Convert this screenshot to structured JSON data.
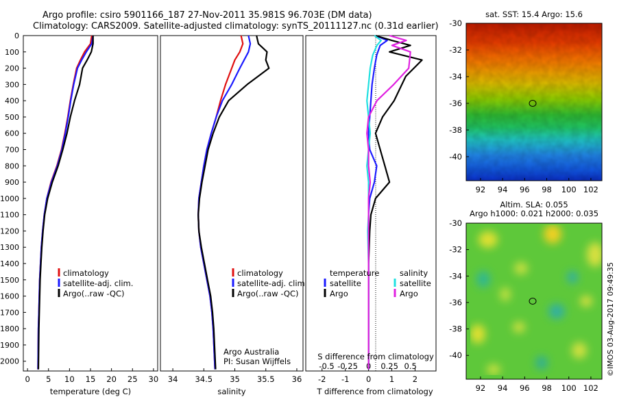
{
  "header": {
    "line1": "Argo profile: csiro 5901166_187 27-Nov-2011 35.981S 96.703E (DM data)",
    "line2": "Climatology: CARS2009. Satellite-adjusted climatology: synTS_20111127.nc (0.31d earlier)"
  },
  "colors": {
    "clim": "#e01010",
    "sat": "#1a1aff",
    "argo": "#000000",
    "sat_s": "#20e0e0",
    "argo_s": "#e020e0"
  },
  "depth_ticks": [
    "0",
    "100",
    "200",
    "300",
    "400",
    "500",
    "600",
    "700",
    "800",
    "900",
    "1000",
    "1100",
    "1200",
    "1300",
    "1400",
    "1500",
    "1600",
    "1700",
    "1800",
    "1900",
    "2000"
  ],
  "panels": {
    "temperature": {
      "xlabel": "temperature (deg C)",
      "xticks": [
        "0",
        "5",
        "10",
        "15",
        "20",
        "25",
        "30"
      ],
      "legend": [
        "climatology",
        "satellite-adj. clim.",
        "Argo(..raw -QC)"
      ]
    },
    "salinity": {
      "xlabel": "salinity",
      "xticks": [
        "34",
        "34.5",
        "35",
        "35.5",
        "36"
      ],
      "legend": [
        "climatology",
        "satellite-adj. clim.",
        "Argo(..raw -QC)"
      ],
      "credit1": "Argo Australia",
      "credit2": "PI: Susan Wijffels"
    },
    "difference": {
      "xlabel": "T difference from climatology",
      "top_label": "S difference from climatology",
      "xticks_T": [
        "-2",
        "-1",
        "0",
        "1",
        "2"
      ],
      "xticks_S": [
        "-0.5",
        "-0.25",
        "0",
        "0.25",
        "0.5"
      ],
      "legend_temp_title": "temperature",
      "legend_sal_title": "salinity",
      "legend_temp": [
        "satellite",
        "Argo"
      ],
      "legend_sal": [
        "satellite",
        "Argo"
      ]
    },
    "sst_map": {
      "title": "sat. SST: 15.4  Argo: 15.6",
      "yticks": [
        "-30",
        "-32",
        "-34",
        "-36",
        "-38",
        "-40"
      ],
      "xticks": [
        "92",
        "94",
        "96",
        "98",
        "100",
        "102"
      ]
    },
    "sla_map": {
      "title1": "Altim. SLA: 0.055",
      "title2": "Argo h1000: 0.021 h2000: 0.035",
      "yticks": [
        "-30",
        "-32",
        "-34",
        "-36",
        "-38",
        "-40"
      ],
      "xticks": [
        "92",
        "94",
        "96",
        "98",
        "100",
        "102"
      ]
    }
  },
  "watermark": "©IMOS 03-Aug-2017 09:49:35",
  "chart_data": [
    {
      "type": "line",
      "title": "",
      "xlabel": "temperature (deg C)",
      "ylabel": "",
      "xlim": [
        -1,
        31
      ],
      "ylim": [
        2060,
        0
      ],
      "series": [
        {
          "name": "climatology",
          "x": [
            15.3,
            15.0,
            13.6,
            12.6,
            11.7,
            10.9,
            10.2,
            9.6,
            8.9,
            8.1,
            7.0,
            5.6,
            4.6,
            4.0,
            3.6,
            3.3,
            3.1,
            2.9,
            2.8,
            2.7,
            2.6,
            2.5
          ],
          "y": [
            0,
            50,
            100,
            150,
            200,
            300,
            400,
            500,
            600,
            700,
            800,
            900,
            1000,
            1100,
            1200,
            1300,
            1400,
            1500,
            1600,
            1700,
            1800,
            2050
          ]
        },
        {
          "name": "satellite-adj. clim.",
          "x": [
            15.6,
            15.3,
            14.0,
            12.9,
            11.9,
            11.0,
            10.3,
            9.7,
            9.0,
            8.2,
            7.1,
            5.7,
            4.6,
            4.0,
            3.6,
            3.3,
            3.1,
            2.9,
            2.8,
            2.7,
            2.6,
            2.5
          ],
          "y": [
            0,
            50,
            100,
            150,
            200,
            300,
            400,
            500,
            600,
            700,
            800,
            900,
            1000,
            1100,
            1200,
            1300,
            1400,
            1500,
            1600,
            1700,
            1800,
            2050
          ]
        },
        {
          "name": "Argo(..raw -QC)",
          "x": [
            15.6,
            15.6,
            15.2,
            14.2,
            13.1,
            12.4,
            11.2,
            10.2,
            9.4,
            8.4,
            7.3,
            5.9,
            4.8,
            4.1,
            3.7,
            3.4,
            3.2,
            3.0,
            2.9,
            2.8,
            2.7,
            2.6
          ],
          "y": [
            0,
            50,
            100,
            150,
            200,
            300,
            400,
            500,
            600,
            700,
            800,
            900,
            1000,
            1100,
            1200,
            1300,
            1400,
            1500,
            1600,
            1700,
            1800,
            2050
          ]
        }
      ]
    },
    {
      "type": "line",
      "title": "",
      "xlabel": "salinity",
      "ylabel": "",
      "xlim": [
        33.8,
        36.1
      ],
      "ylim": [
        2060,
        0
      ],
      "series": [
        {
          "name": "climatology",
          "x": [
            35.1,
            35.13,
            35.08,
            35.0,
            34.95,
            34.85,
            34.77,
            34.7,
            34.62,
            34.55,
            34.5,
            34.46,
            34.42,
            34.41,
            34.42,
            34.45,
            34.5,
            34.55,
            34.6,
            34.63,
            34.65,
            34.68
          ],
          "y": [
            0,
            50,
            100,
            150,
            200,
            300,
            400,
            500,
            600,
            700,
            800,
            900,
            1000,
            1100,
            1200,
            1300,
            1400,
            1500,
            1600,
            1700,
            1800,
            2050
          ]
        },
        {
          "name": "satellite-adj. clim.",
          "x": [
            35.22,
            35.25,
            35.22,
            35.15,
            35.08,
            34.95,
            34.8,
            34.7,
            34.62,
            34.55,
            34.5,
            34.46,
            34.42,
            34.41,
            34.42,
            34.45,
            34.5,
            34.55,
            34.6,
            34.63,
            34.65,
            34.68
          ],
          "y": [
            0,
            50,
            100,
            150,
            200,
            300,
            400,
            500,
            600,
            700,
            800,
            900,
            1000,
            1100,
            1200,
            1300,
            1400,
            1500,
            1600,
            1700,
            1800,
            2050
          ]
        },
        {
          "name": "Argo(..raw -QC)",
          "x": [
            35.35,
            35.38,
            35.52,
            35.5,
            35.55,
            35.2,
            34.9,
            34.75,
            34.65,
            34.57,
            34.52,
            34.47,
            34.43,
            34.41,
            34.42,
            34.46,
            34.51,
            34.56,
            34.61,
            34.64,
            34.66,
            34.69
          ],
          "y": [
            0,
            50,
            100,
            150,
            200,
            300,
            400,
            500,
            600,
            700,
            800,
            900,
            1000,
            1100,
            1200,
            1300,
            1400,
            1500,
            1600,
            1700,
            1800,
            2050
          ]
        }
      ]
    },
    {
      "type": "line",
      "title": "",
      "xlabel": "T difference from climatology",
      "ylabel": "",
      "xlim": [
        -2.7,
        2.9
      ],
      "ylim": [
        2060,
        0
      ],
      "series": [
        {
          "name": "temperature satellite",
          "x": [
            0.3,
            0.8,
            0.5,
            0.35,
            0.25,
            0.15,
            0.1,
            0.05,
            0.0,
            0.05,
            0.35,
            0.25,
            0.05,
            0.0,
            0.0,
            0.0,
            0.0,
            0.0,
            0.0,
            0.0
          ],
          "y": [
            0,
            30,
            60,
            120,
            200,
            300,
            400,
            500,
            600,
            700,
            800,
            900,
            1000,
            1100,
            1200,
            1400,
            1600,
            1800,
            1900,
            2050
          ]
        },
        {
          "name": "temperature Argo",
          "x": [
            0.3,
            1.0,
            1.8,
            0.9,
            2.3,
            1.6,
            1.1,
            0.6,
            0.3,
            0.5,
            0.7,
            0.9,
            0.3,
            0.1,
            0.05,
            0.0,
            0.0,
            0.0,
            0.0,
            0.0
          ],
          "y": [
            0,
            30,
            60,
            100,
            150,
            250,
            400,
            500,
            600,
            700,
            800,
            900,
            1000,
            1100,
            1200,
            1400,
            1600,
            1800,
            1900,
            2050
          ]
        },
        {
          "name": "salinity satellite",
          "x": [
            0.07,
            0.15,
            0.1,
            0.05,
            0.02,
            0.0,
            -0.02,
            0.0,
            0.02,
            0.0,
            -0.02,
            0.0,
            0.0,
            0.0,
            -0.01,
            0.0,
            0.0,
            0.0,
            0.0,
            0.0
          ],
          "y": [
            0,
            30,
            60,
            120,
            200,
            300,
            400,
            500,
            600,
            700,
            800,
            900,
            1000,
            1100,
            1200,
            1400,
            1600,
            1800,
            1900,
            2050
          ]
        },
        {
          "name": "salinity Argo",
          "x": [
            0.25,
            0.45,
            0.28,
            0.5,
            0.48,
            0.3,
            0.1,
            0.0,
            -0.02,
            0.0,
            0.0,
            0.02,
            0.0,
            0.0,
            0.0,
            0.0,
            0.0,
            0.0,
            0.0,
            0.0
          ],
          "y": [
            0,
            30,
            60,
            100,
            200,
            300,
            400,
            500,
            600,
            700,
            800,
            900,
            1000,
            1100,
            1200,
            1400,
            1600,
            1800,
            1900,
            2050
          ]
        }
      ]
    },
    {
      "type": "heatmap",
      "title": "sat. SST: 15.4  Argo: 15.6",
      "xlim": [
        90.7,
        103.0
      ],
      "ylim": [
        -41.8,
        -30.0
      ],
      "marker": {
        "lon": 96.703,
        "lat": -35.981
      },
      "value": {
        "sat_sst": 15.4,
        "argo": 15.6
      }
    },
    {
      "type": "heatmap",
      "title": "Altim. SLA: 0.055",
      "xlim": [
        90.7,
        103.0
      ],
      "ylim": [
        -41.8,
        -30.0
      ],
      "marker": {
        "lon": 96.703,
        "lat": -35.981
      },
      "value": {
        "sla": 0.055,
        "argo_h1000": 0.021,
        "argo_h2000": 0.035
      }
    }
  ]
}
